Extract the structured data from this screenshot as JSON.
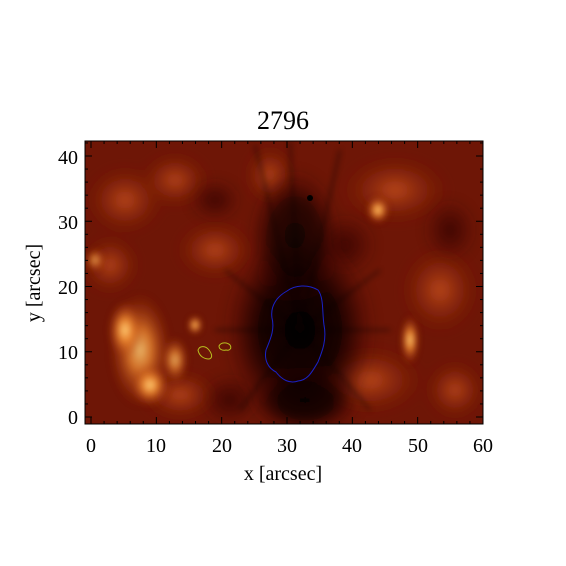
{
  "figure": {
    "title": "2796",
    "xlabel": "x [arcsec]",
    "ylabel": "y [arcsec]",
    "x_ticks": [
      "0",
      "10",
      "20",
      "30",
      "40",
      "50",
      "60"
    ],
    "y_ticks": [
      "0",
      "10",
      "20",
      "30",
      "40"
    ],
    "colormap": "red-temperature",
    "colors": {
      "background": "#ffffff",
      "image_dark": "#050000",
      "image_mid": "#7a1a08",
      "image_bright": "#f59a3a",
      "contour_umbra": "#1a22c8",
      "contour_plage": "#b8c020"
    }
  }
}
